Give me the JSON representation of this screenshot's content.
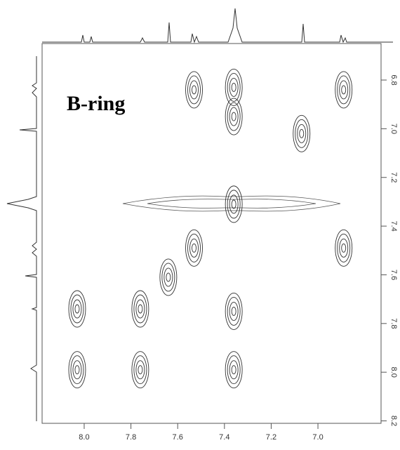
{
  "chart_data": {
    "type": "contour",
    "annotation": "B-ring",
    "x": [
      7.53,
      6.89,
      7.07,
      7.36,
      7.53,
      6.89,
      7.64,
      8.03,
      7.76,
      8.03,
      7.76,
      7.36,
      7.36,
      7.36,
      7.36
    ],
    "y": [
      6.84,
      6.84,
      7.02,
      7.31,
      7.49,
      7.49,
      7.61,
      7.74,
      7.74,
      7.99,
      7.99,
      6.83,
      6.95,
      7.75,
      7.99
    ],
    "color": "#333333",
    "xlim": [
      8.18,
      6.73
    ],
    "ylim": [
      6.65,
      8.21
    ],
    "xticks": [
      {
        "value": 8,
        "label": "8.0"
      },
      7.8,
      7.6,
      7.4,
      7.2,
      {
        "value": 7,
        "label": "7.0"
      }
    ],
    "yticks": [
      6.8,
      {
        "value": 7,
        "label": "7.0"
      },
      7.2,
      7.4,
      7.6,
      7.8,
      {
        "value": 8,
        "label": "8.0"
      },
      8.2
    ]
  }
}
